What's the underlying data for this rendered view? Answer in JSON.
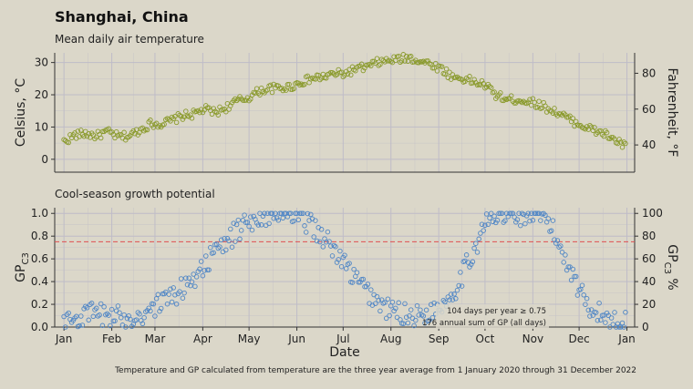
{
  "header": {
    "title": "Shanghai, China",
    "subtitle": "Mean daily air temperature",
    "gp_title": "Cool-season growth potential",
    "caption": "Temperature and GP calculated from temperature are the three year average from 1 January 2020 through 31 December 2022"
  },
  "colors": {
    "background": "#dbd7c9",
    "temperature_points": "#8a9a2c",
    "gp_points": "#4f86c6",
    "threshold_line": "#e05050",
    "grid": "#bfbcc8"
  },
  "chart_data": [
    {
      "type": "scatter",
      "xlabel": "",
      "ylabel": "Celsius, °C",
      "ylabel_right": "Fahrenheit, °F",
      "ylim": [
        -4,
        33
      ],
      "yticks": [
        0,
        10,
        20,
        30
      ],
      "yticks_right": [
        40,
        60,
        80
      ],
      "grid": true,
      "anchors": {
        "day": [
          1,
          8,
          15,
          22,
          29,
          36,
          43,
          50,
          57,
          64,
          71,
          78,
          85,
          92,
          99,
          106,
          113,
          120,
          127,
          134,
          141,
          148,
          155,
          162,
          169,
          176,
          183,
          190,
          197,
          204,
          211,
          218,
          225,
          232,
          239,
          246,
          253,
          260,
          267,
          274,
          281,
          288,
          295,
          302,
          309,
          316,
          323,
          330,
          337,
          344,
          351,
          358,
          365
        ],
        "temp_c": [
          5.5,
          7.5,
          8.0,
          7.2,
          8.5,
          7.0,
          7.2,
          9.0,
          11.0,
          11.0,
          12.0,
          13.5,
          14.0,
          15.5,
          14.5,
          16.0,
          18.0,
          19.0,
          21.0,
          22.0,
          22.0,
          22.5,
          24.0,
          25.0,
          25.5,
          26.5,
          26.5,
          28.0,
          28.5,
          30.0,
          30.5,
          31.0,
          31.5,
          30.5,
          29.5,
          28.0,
          25.5,
          25.0,
          24.0,
          23.0,
          20.0,
          18.5,
          18.5,
          18.0,
          17.0,
          15.5,
          14.0,
          12.0,
          10.5,
          9.0,
          8.0,
          6.0,
          4.0
        ]
      }
    },
    {
      "type": "scatter",
      "xlabel": "Date",
      "ylabel": "GP C3",
      "ylabel_right": "GP C3 %",
      "ylim": [
        0,
        1.05
      ],
      "yticks": [
        0.0,
        0.2,
        0.4,
        0.6,
        0.8,
        1.0
      ],
      "yticks_right": [
        0,
        20,
        40,
        60,
        80,
        100
      ],
      "threshold": 0.75,
      "grid": true,
      "annotations": [
        "104 days per year ≥ 0.75",
        "176 annual sum of GP (all days)"
      ],
      "anchors": {
        "day": [
          1,
          10,
          20,
          30,
          40,
          50,
          60,
          70,
          80,
          90,
          100,
          110,
          120,
          130,
          140,
          150,
          160,
          170,
          180,
          190,
          200,
          210,
          220,
          230,
          240,
          250,
          255,
          265,
          270,
          275,
          285,
          295,
          305,
          315,
          320,
          330,
          337,
          345,
          355,
          365
        ],
        "gp": [
          0.04,
          0.08,
          0.12,
          0.1,
          0.08,
          0.1,
          0.18,
          0.26,
          0.36,
          0.52,
          0.66,
          0.8,
          0.93,
          0.99,
          1.0,
          0.98,
          0.92,
          0.78,
          0.6,
          0.42,
          0.28,
          0.16,
          0.12,
          0.1,
          0.14,
          0.25,
          0.35,
          0.62,
          0.78,
          0.92,
          0.98,
          0.99,
          0.99,
          0.93,
          0.78,
          0.5,
          0.28,
          0.14,
          0.07,
          0.04
        ]
      }
    }
  ],
  "axis": {
    "months": [
      "Jan",
      "Feb",
      "Mar",
      "Apr",
      "May",
      "Jun",
      "Jul",
      "Aug",
      "Sep",
      "Oct",
      "Nov",
      "Dec",
      "Jan"
    ],
    "month_days": [
      1,
      32,
      60,
      91,
      121,
      152,
      182,
      213,
      244,
      274,
      305,
      335,
      366
    ],
    "xlim": [
      -5,
      371
    ]
  }
}
